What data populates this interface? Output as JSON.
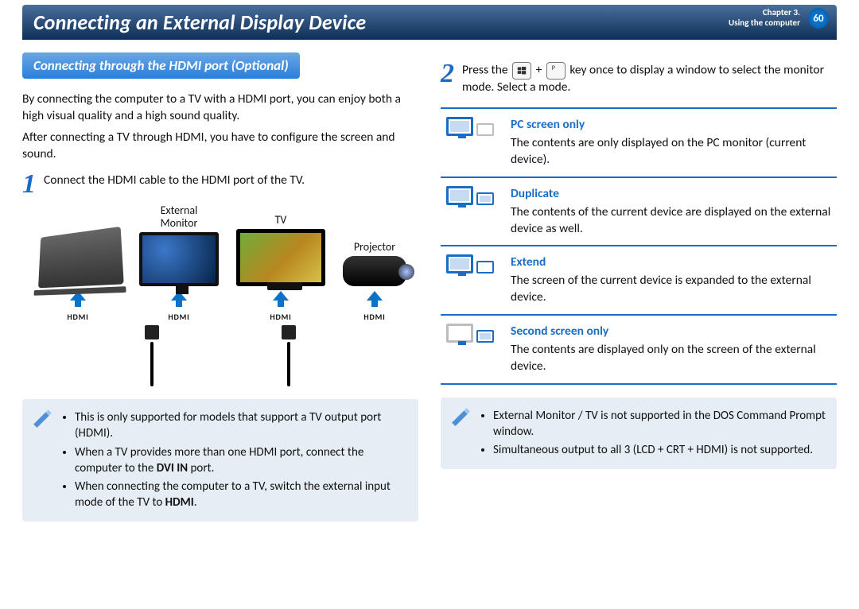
{
  "header": {
    "title": "Connecting an External Display Device",
    "chapter_line1": "Chapter 3.",
    "chapter_line2": "Using the computer",
    "page_number": "60"
  },
  "colors": {
    "brand": "#1a6dc6",
    "header_grad_top": "#4a6f9b",
    "header_grad_bottom": "#0d2f57",
    "pill_grad_top": "#69a7e8",
    "pill_grad_bottom": "#2b7ed6",
    "note_bg": "#e6edf4",
    "page_circle": "#0a73c9"
  },
  "left": {
    "section_heading": "Connecting through the HDMI port (Optional)",
    "para1": "By connecting the computer to a TV with a HDMI port, you can enjoy both a high visual quality and a high sound quality.",
    "para2": "After connecting a TV through HDMI, you have to configure the screen and sound.",
    "step1_num": "1",
    "step1_text": "Connect the HDMI cable to the HDMI port of the TV.",
    "diagram": {
      "label_ext_monitor": "External\nMonitor",
      "label_tv": "TV",
      "label_projector": "Projector",
      "hdmi_label": "HDMI"
    },
    "note_bullets": [
      "This is only supported for models that support a TV output port (HDMI).",
      "When a TV provides more than one HDMI port, connect the computer to the DVI IN port.",
      "When connecting the computer to a TV, switch the external input mode of the TV to HDMI."
    ]
  },
  "right": {
    "step2_num": "2",
    "step2_pre": "Press the ",
    "step2_plus": " + ",
    "step2_p": "P",
    "step2_post": " key once to display a window to select the monitor mode. Select a mode.",
    "modes": [
      {
        "title": "PC  screen  only",
        "icon": "pc-only",
        "desc": "The contents are only displayed on the PC monitor (current device)."
      },
      {
        "title": "Duplicate",
        "icon": "duplicate",
        "desc": "The contents of the current device are displayed on the external device as well."
      },
      {
        "title": "Extend",
        "icon": "extend",
        "desc": "The screen of the current device is expanded to the external device."
      },
      {
        "title": "Second screen only",
        "icon": "second-only",
        "desc": "The contents are displayed only on the screen of the external device."
      }
    ],
    "note_bullets": [
      "External Monitor / TV is not supported in the DOS Command Prompt window.",
      "Simultaneous output to all 3 (LCD + CRT + HDMI) is not supported."
    ]
  }
}
